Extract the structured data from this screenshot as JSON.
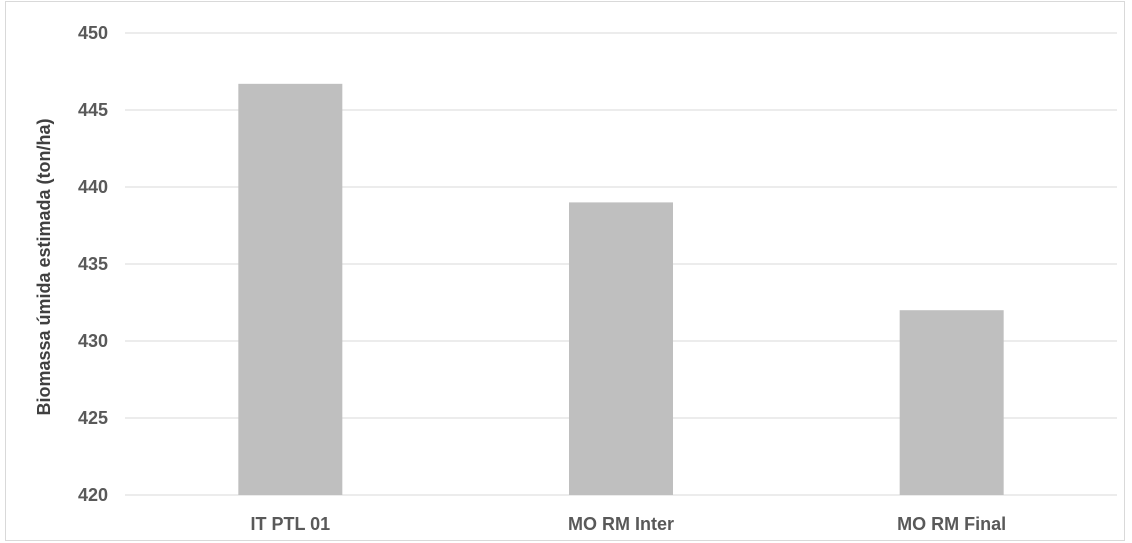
{
  "chart_data": {
    "type": "bar",
    "title": "",
    "xlabel": "",
    "ylabel": "Biomassa úmida estimada (ton/ha)",
    "categories": [
      "IT PTL 01",
      "MO RM Inter",
      "MO RM Final"
    ],
    "values": [
      446.7,
      439.0,
      432.0
    ],
    "ylim": [
      420,
      450
    ],
    "yticks": [
      420,
      425,
      430,
      435,
      440,
      445,
      450
    ],
    "grid": true,
    "legend": "none",
    "bar_color": "#bfbfbf",
    "grid_color": "#d9d9d9"
  }
}
